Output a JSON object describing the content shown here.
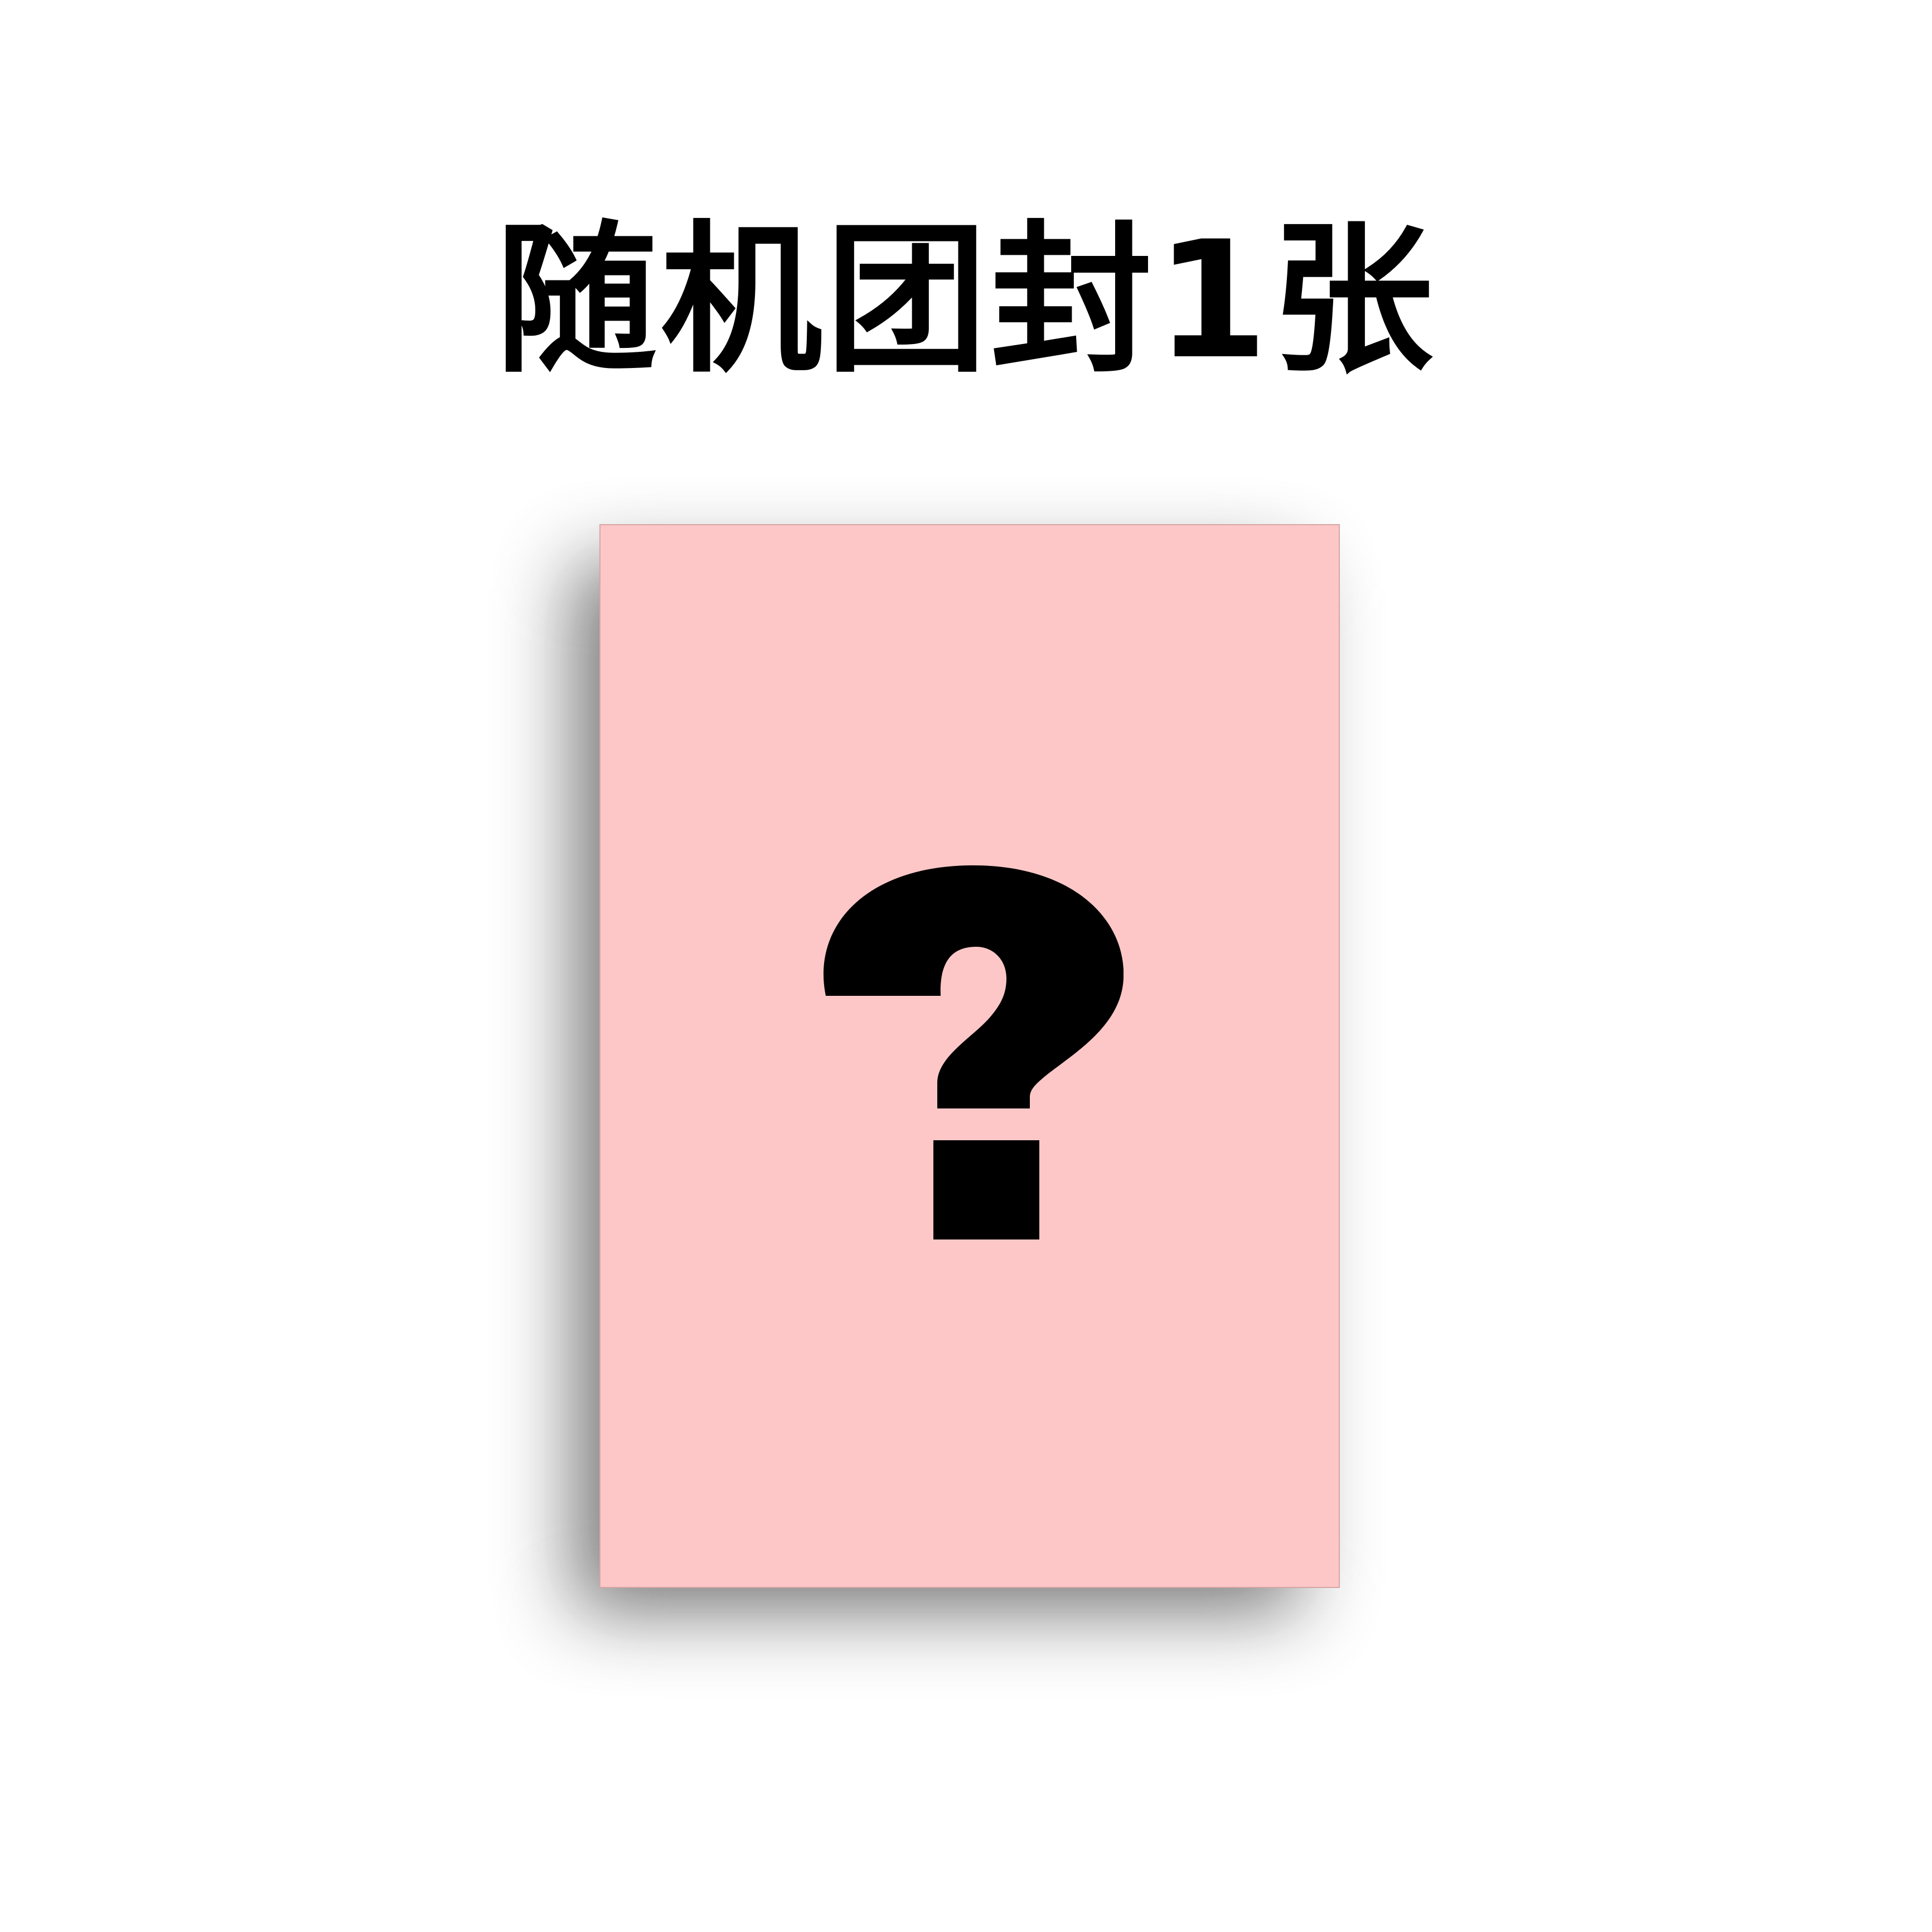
{
  "title": "随机团封1张",
  "card": {
    "background_color": "#fdc7c7",
    "symbol": "question-mark-icon",
    "symbol_color": "#000000"
  }
}
